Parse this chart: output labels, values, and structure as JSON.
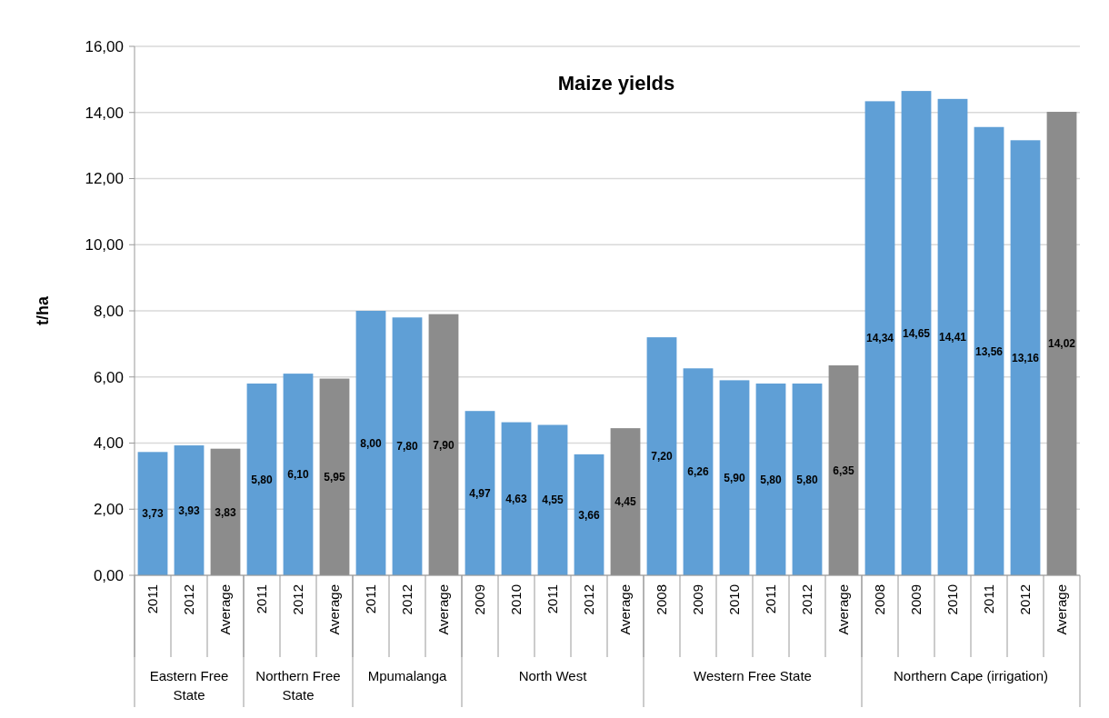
{
  "chart_data": {
    "type": "bar",
    "title": "Maize yields",
    "ylabel": "t/ha",
    "categories": [
      "2011",
      "2012",
      "Average",
      "2011",
      "2012",
      "Average",
      "2011",
      "2012",
      "Average",
      "2009",
      "2010",
      "2011",
      "2012",
      "Average",
      "2008",
      "2009",
      "2010",
      "2011",
      "2012",
      "Average",
      "2008",
      "2009",
      "2010",
      "2011",
      "2012",
      "Average"
    ],
    "values": [
      3.73,
      3.93,
      3.83,
      5.8,
      6.1,
      5.95,
      8.0,
      7.8,
      7.9,
      4.97,
      4.63,
      4.55,
      3.66,
      4.45,
      7.2,
      6.26,
      5.9,
      5.8,
      5.8,
      6.35,
      14.34,
      14.65,
      14.41,
      13.56,
      13.16,
      14.02
    ],
    "value_labels": [
      "3,73",
      "3,93",
      "3,83",
      "5,80",
      "6,10",
      "5,95",
      "8,00",
      "7,80",
      "7,90",
      "4,97",
      "4,63",
      "4,55",
      "3,66",
      "4,45",
      "7,20",
      "6,26",
      "5,90",
      "5,80",
      "5,80",
      "6,35",
      "14,34",
      "14,65",
      "14,41",
      "13,56",
      "13,16",
      "14,02"
    ],
    "colors": [
      "#5f9fd6",
      "#5f9fd6",
      "#8c8c8c",
      "#5f9fd6",
      "#5f9fd6",
      "#8c8c8c",
      "#5f9fd6",
      "#5f9fd6",
      "#8c8c8c",
      "#5f9fd6",
      "#5f9fd6",
      "#5f9fd6",
      "#5f9fd6",
      "#8c8c8c",
      "#5f9fd6",
      "#5f9fd6",
      "#5f9fd6",
      "#5f9fd6",
      "#5f9fd6",
      "#8c8c8c",
      "#5f9fd6",
      "#5f9fd6",
      "#5f9fd6",
      "#5f9fd6",
      "#5f9fd6",
      "#8c8c8c"
    ],
    "annotations": [
      "Eastern Free State",
      "Northern Free State",
      "Mpumalanga",
      "North West",
      "Western Free State",
      "Northern Cape (irrigation)"
    ],
    "ylim": [
      0,
      16
    ],
    "yticks": [
      {
        "value": 0,
        "label": "0,00"
      },
      {
        "value": 2,
        "label": "2,00"
      },
      {
        "value": 4,
        "label": "4,00"
      },
      {
        "value": 6,
        "label": "6,00"
      },
      {
        "value": 8,
        "label": "8,00"
      },
      {
        "value": 10,
        "label": "10,00"
      },
      {
        "value": 12,
        "label": "12,00"
      },
      {
        "value": 14,
        "label": "14,00"
      },
      {
        "value": 16,
        "label": "16,00"
      }
    ],
    "grid": "y"
  }
}
